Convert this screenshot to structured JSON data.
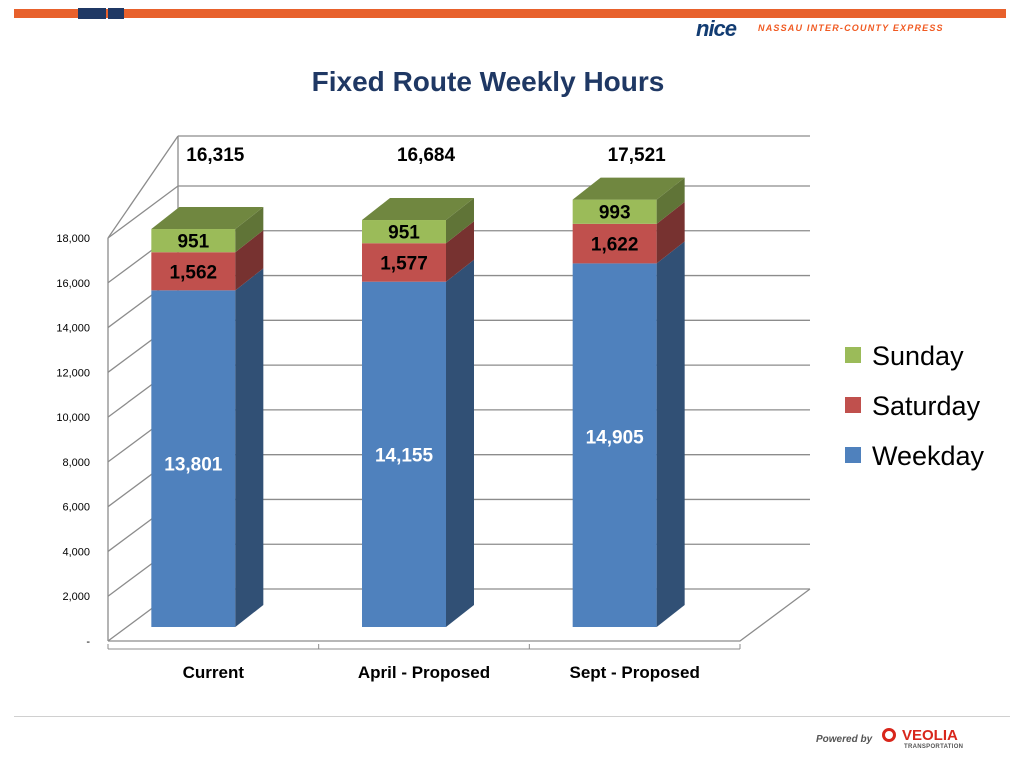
{
  "header": {
    "logo_text": "nice",
    "org_name": "NASSAU INTER-COUNTY EXPRESS",
    "accent_color": "#e8612c",
    "brand_color": "#123c72"
  },
  "footer": {
    "powered_by": "Powered by",
    "partner_name": "VEOLIA",
    "partner_sub": "TRANSPORTATION",
    "partner_color": "#d8261b"
  },
  "chart_data": {
    "type": "bar",
    "stacked": true,
    "three_d": true,
    "title": "Fixed Route Weekly Hours",
    "xlabel": "",
    "ylabel": "",
    "categories": [
      "Current",
      "April - Proposed",
      "Sept - Proposed"
    ],
    "series": [
      {
        "name": "Weekday",
        "values": [
          13801,
          14155,
          14905
        ],
        "labels": [
          "13,801",
          "14,155",
          "14,905"
        ],
        "color": "#4f81bd"
      },
      {
        "name": "Saturday",
        "values": [
          1562,
          1577,
          1622
        ],
        "labels": [
          "1,562",
          "1,577",
          "1,622"
        ],
        "color": "#c0504d"
      },
      {
        "name": "Sunday",
        "values": [
          951,
          951,
          993
        ],
        "labels": [
          "951",
          "951",
          "993"
        ],
        "color": "#9bbb59"
      }
    ],
    "totals": [
      "16,315",
      "16,684",
      "17,521"
    ],
    "ylim": [
      0,
      18000
    ],
    "yticks": [
      0,
      2000,
      4000,
      6000,
      8000,
      10000,
      12000,
      14000,
      16000,
      18000
    ],
    "ytick_labels": [
      "-",
      "2,000",
      "4,000",
      "6,000",
      "8,000",
      "10,000",
      "12,000",
      "14,000",
      "16,000",
      "18,000"
    ],
    "legend_order": [
      "Sunday",
      "Saturday",
      "Weekday"
    ],
    "legend_position": "right",
    "grid": true
  }
}
